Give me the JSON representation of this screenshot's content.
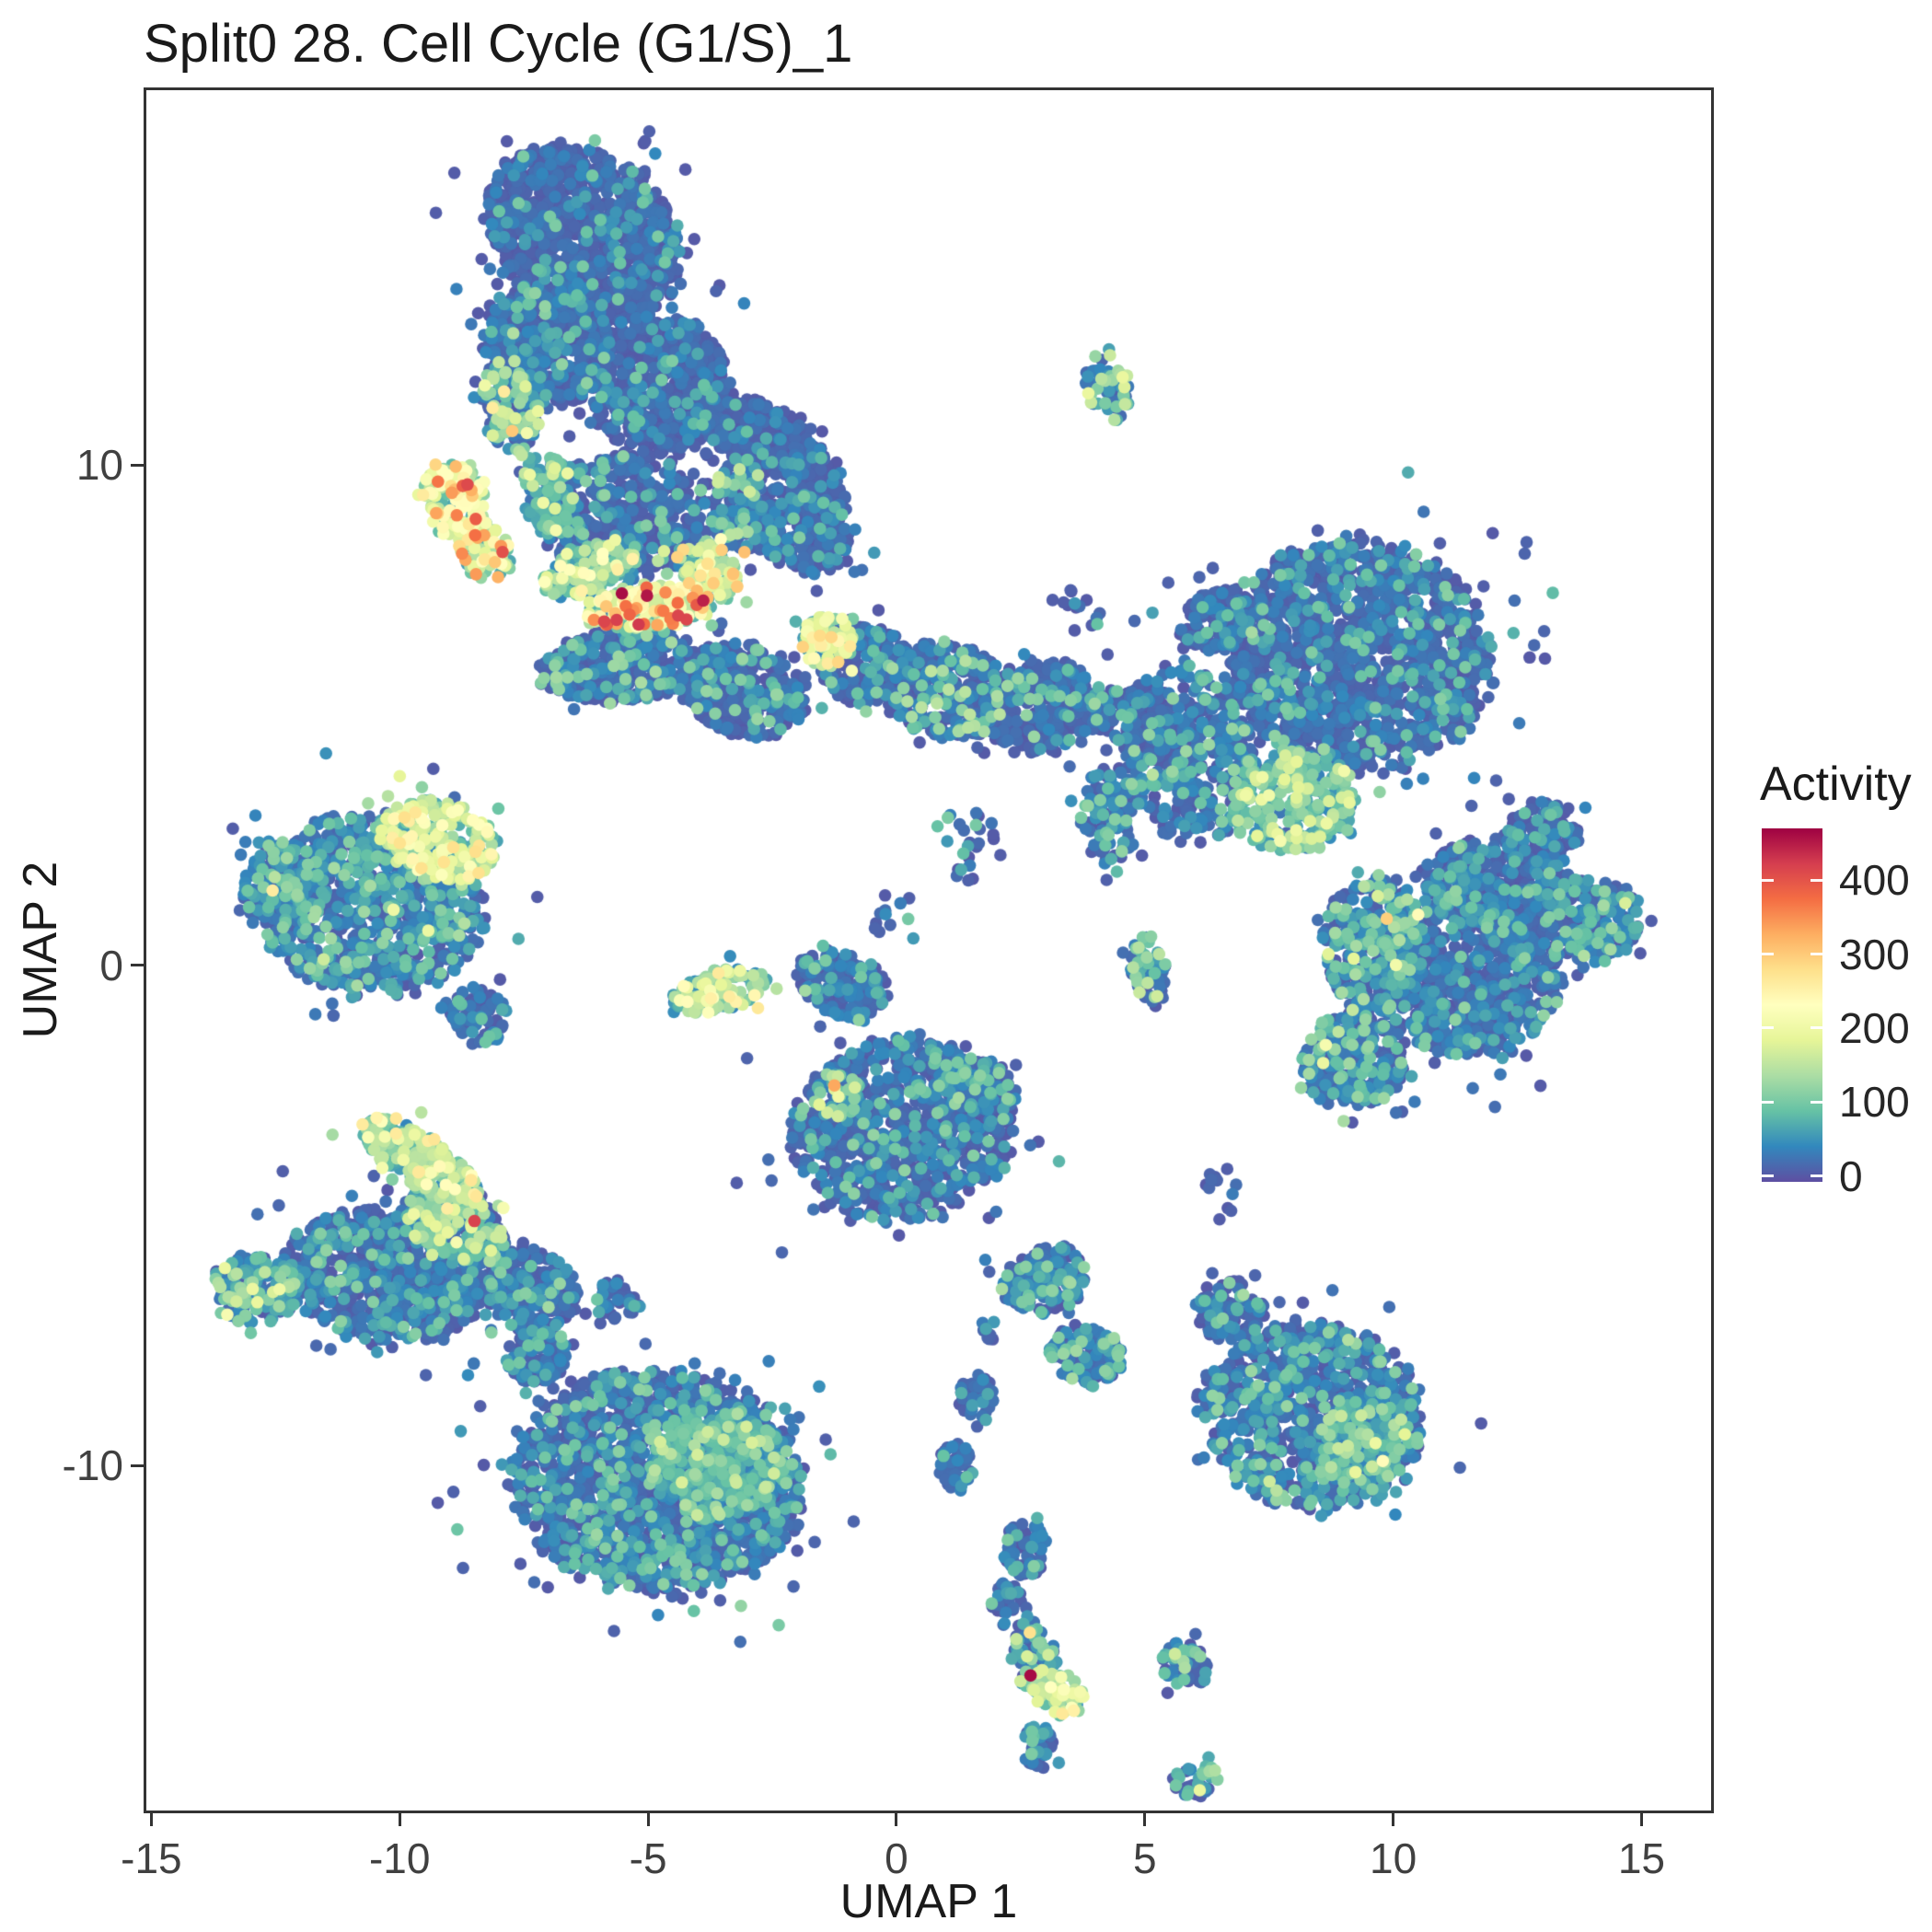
{
  "title": "Split0 28. Cell Cycle (G1/S)_1",
  "chart_data": {
    "type": "scatter",
    "title": "Split0 28. Cell Cycle (G1/S)_1",
    "xlabel": "UMAP 1",
    "ylabel": "UMAP 2",
    "xlim": [
      -15.1,
      16.4
    ],
    "ylim": [
      -16.9,
      17.5
    ],
    "xticks": [
      -15,
      -10,
      -5,
      0,
      5,
      10,
      15
    ],
    "yticks": [
      -10,
      0,
      10
    ],
    "grid": false,
    "point_radius_px": 6.8,
    "seed": 7,
    "legend": {
      "title": "Activity",
      "position": "right",
      "ticks": [
        0,
        100,
        200,
        300,
        400
      ],
      "range": [
        -8,
        470
      ]
    },
    "colormap": [
      {
        "t": 0.0,
        "color": "#5E4FA2"
      },
      {
        "t": 0.1,
        "color": "#3288BD"
      },
      {
        "t": 0.2,
        "color": "#66C2A5"
      },
      {
        "t": 0.3,
        "color": "#ABDDA4"
      },
      {
        "t": 0.4,
        "color": "#E6F598"
      },
      {
        "t": 0.5,
        "color": "#FFFFBF"
      },
      {
        "t": 0.6,
        "color": "#FEE08B"
      },
      {
        "t": 0.7,
        "color": "#FDAE61"
      },
      {
        "t": 0.8,
        "color": "#F46D43"
      },
      {
        "t": 0.9,
        "color": "#D53E4F"
      },
      {
        "t": 1.0,
        "color": "#9E0142"
      }
    ],
    "clusters": [
      {
        "cx": -6.3,
        "cy": 14.6,
        "rx": 2.1,
        "ry": 1.6,
        "rot": -35,
        "n": 1100,
        "base": 12,
        "hf": 0.05,
        "hot": 75
      },
      {
        "cx": -7.0,
        "cy": 12.4,
        "rx": 1.3,
        "ry": 1.2,
        "rot": -20,
        "n": 600,
        "base": 14,
        "hf": 0.07,
        "hot": 85
      },
      {
        "cx": -4.8,
        "cy": 11.6,
        "rx": 1.4,
        "ry": 1.4,
        "rot": 15,
        "n": 600,
        "base": 12,
        "hf": 0.05,
        "hot": 75
      },
      {
        "cx": -7.8,
        "cy": 11.2,
        "rx": 0.55,
        "ry": 1.0,
        "rot": 10,
        "n": 140,
        "base": 55,
        "hf": 0.2,
        "hot": 130
      },
      {
        "cx": -2.8,
        "cy": 10.6,
        "rx": 1.3,
        "ry": 0.65,
        "rot": -25,
        "n": 280,
        "base": 12,
        "hf": 0.05,
        "hot": 70
      },
      {
        "cx": -1.6,
        "cy": 9.5,
        "rx": 0.55,
        "ry": 0.95,
        "rot": 15,
        "n": 130,
        "base": 14,
        "hf": 0.06,
        "hot": 75
      },
      {
        "cx": -5.5,
        "cy": 9.0,
        "rx": 1.7,
        "ry": 1.25,
        "rot": 0,
        "n": 480,
        "base": 16,
        "hf": 0.08,
        "hot": 85
      },
      {
        "cx": -8.9,
        "cy": 9.3,
        "rx": 0.6,
        "ry": 0.8,
        "rot": 20,
        "n": 140,
        "base": 150,
        "hf": 0.22,
        "hot": 300
      },
      {
        "cx": -8.3,
        "cy": 8.3,
        "rx": 0.5,
        "ry": 0.65,
        "rot": 30,
        "n": 90,
        "base": 120,
        "hf": 0.2,
        "hot": 290
      },
      {
        "cx": -7.0,
        "cy": 9.4,
        "rx": 0.5,
        "ry": 0.9,
        "rot": 10,
        "n": 120,
        "base": 60,
        "hf": 0.15,
        "hot": 150
      },
      {
        "cx": -6.2,
        "cy": 7.9,
        "rx": 0.95,
        "ry": 0.45,
        "rot": 20,
        "n": 140,
        "base": 90,
        "hf": 0.2,
        "hot": 185
      },
      {
        "cx": -5.0,
        "cy": 7.15,
        "rx": 1.3,
        "ry": 0.42,
        "rot": 4,
        "n": 190,
        "base": 160,
        "hf": 0.22,
        "hot": 330
      },
      {
        "cx": -3.8,
        "cy": 7.9,
        "rx": 0.7,
        "ry": 0.5,
        "rot": -45,
        "n": 120,
        "base": 110,
        "hf": 0.18,
        "hot": 230
      },
      {
        "cx": -3.2,
        "cy": 9.2,
        "rx": 0.55,
        "ry": 0.95,
        "rot": 0,
        "n": 150,
        "base": 40,
        "hf": 0.1,
        "hot": 120
      },
      {
        "cx": -2.0,
        "cy": 8.7,
        "rx": 1.15,
        "ry": 0.75,
        "rot": -25,
        "n": 280,
        "base": 14,
        "hf": 0.06,
        "hot": 80
      },
      {
        "cx": -5.6,
        "cy": 6.0,
        "rx": 1.6,
        "ry": 0.75,
        "rot": 5,
        "n": 360,
        "base": 20,
        "hf": 0.08,
        "hot": 95
      },
      {
        "cx": -3.1,
        "cy": 5.5,
        "rx": 1.3,
        "ry": 0.9,
        "rot": -15,
        "n": 340,
        "base": 15,
        "hf": 0.08,
        "hot": 90
      },
      {
        "cx": -1.4,
        "cy": 6.5,
        "rx": 0.5,
        "ry": 0.55,
        "rot": 0,
        "n": 90,
        "base": 130,
        "hf": 0.28,
        "hot": 215
      },
      {
        "cx": -0.6,
        "cy": 6.0,
        "rx": 1.0,
        "ry": 0.8,
        "rot": -20,
        "n": 240,
        "base": 15,
        "hf": 0.08,
        "hot": 80
      },
      {
        "cx": 1.0,
        "cy": 5.5,
        "rx": 1.3,
        "ry": 0.95,
        "rot": -10,
        "n": 340,
        "base": 18,
        "hf": 0.11,
        "hot": 110
      },
      {
        "cx": 2.9,
        "cy": 5.2,
        "rx": 1.2,
        "ry": 0.9,
        "rot": 10,
        "n": 300,
        "base": 15,
        "hf": 0.08,
        "hot": 90
      },
      {
        "cx": 3.6,
        "cy": 7.1,
        "rx": 0.55,
        "ry": 0.5,
        "rot": 0,
        "n": 14,
        "base": 15,
        "hf": 0.1,
        "hot": 70
      },
      {
        "cx": 4.25,
        "cy": 11.6,
        "rx": 0.42,
        "ry": 0.72,
        "rot": 8,
        "n": 55,
        "base": 40,
        "hf": 0.25,
        "hot": 140
      },
      {
        "cx": -10.6,
        "cy": 1.2,
        "rx": 2.3,
        "ry": 1.8,
        "rot": -8,
        "n": 950,
        "base": 30,
        "hf": 0.12,
        "hot": 95
      },
      {
        "cx": -9.2,
        "cy": 2.5,
        "rx": 1.2,
        "ry": 0.8,
        "rot": -15,
        "n": 260,
        "base": 120,
        "hf": 0.25,
        "hot": 200
      },
      {
        "cx": -12.3,
        "cy": 1.6,
        "rx": 0.85,
        "ry": 0.9,
        "rot": 0,
        "n": 200,
        "base": 25,
        "hf": 0.1,
        "hot": 85
      },
      {
        "cx": -8.4,
        "cy": -1.0,
        "rx": 0.55,
        "ry": 0.6,
        "rot": 30,
        "n": 90,
        "base": 16,
        "hf": 0.06,
        "hot": 70
      },
      {
        "cx": -3.6,
        "cy": -0.5,
        "rx": 1.0,
        "ry": 0.4,
        "rot": 12,
        "n": 140,
        "base": 95,
        "hf": 0.25,
        "hot": 190
      },
      {
        "cx": -1.1,
        "cy": -0.4,
        "rx": 0.95,
        "ry": 0.65,
        "rot": -25,
        "n": 180,
        "base": 20,
        "hf": 0.1,
        "hot": 95
      },
      {
        "cx": 0.1,
        "cy": -3.3,
        "rx": 2.25,
        "ry": 1.8,
        "rot": 8,
        "n": 950,
        "base": 16,
        "hf": 0.09,
        "hot": 85
      },
      {
        "cx": -1.2,
        "cy": -2.6,
        "rx": 0.5,
        "ry": 0.45,
        "rot": 0,
        "n": 60,
        "base": 55,
        "hf": 0.2,
        "hot": 150
      },
      {
        "cx": 1.6,
        "cy": -2.4,
        "rx": 0.8,
        "ry": 0.55,
        "rot": -15,
        "n": 140,
        "base": 20,
        "hf": 0.1,
        "hot": 90
      },
      {
        "cx": -9.6,
        "cy": -3.9,
        "rx": 1.35,
        "ry": 0.5,
        "rot": -33,
        "n": 230,
        "base": 105,
        "hf": 0.25,
        "hot": 195
      },
      {
        "cx": -8.9,
        "cy": -5.2,
        "rx": 1.1,
        "ry": 0.7,
        "rot": -30,
        "n": 260,
        "base": 55,
        "hf": 0.15,
        "hot": 130
      },
      {
        "cx": -10.3,
        "cy": -6.2,
        "rx": 2.0,
        "ry": 1.3,
        "rot": -10,
        "n": 800,
        "base": 20,
        "hf": 0.09,
        "hot": 85
      },
      {
        "cx": -12.9,
        "cy": -6.5,
        "rx": 0.9,
        "ry": 0.7,
        "rot": 0,
        "n": 170,
        "base": 45,
        "hf": 0.18,
        "hot": 110
      },
      {
        "cx": -7.4,
        "cy": -6.5,
        "rx": 0.95,
        "ry": 0.8,
        "rot": -20,
        "n": 260,
        "base": 18,
        "hf": 0.08,
        "hot": 80
      },
      {
        "cx": -4.8,
        "cy": -10.3,
        "rx": 2.9,
        "ry": 2.2,
        "rot": -4,
        "n": 1900,
        "base": 18,
        "hf": 0.1,
        "hot": 85
      },
      {
        "cx": -3.6,
        "cy": -10.0,
        "rx": 1.35,
        "ry": 1.1,
        "rot": 0,
        "n": 380,
        "base": 60,
        "hf": 0.2,
        "hot": 125
      },
      {
        "cx": -7.2,
        "cy": -7.8,
        "rx": 0.7,
        "ry": 0.5,
        "rot": 20,
        "n": 120,
        "base": 16,
        "hf": 0.07,
        "hot": 75
      },
      {
        "cx": -5.6,
        "cy": -6.7,
        "rx": 0.5,
        "ry": 0.4,
        "rot": 0,
        "n": 45,
        "base": 16,
        "hf": 0.08,
        "hot": 75
      },
      {
        "cx": 9.3,
        "cy": 6.2,
        "rx": 2.7,
        "ry": 2.3,
        "rot": -8,
        "n": 1600,
        "base": 15,
        "hf": 0.07,
        "hot": 80
      },
      {
        "cx": 5.9,
        "cy": 4.2,
        "rx": 1.3,
        "ry": 1.8,
        "rot": 8,
        "n": 420,
        "base": 22,
        "hf": 0.12,
        "hot": 90
      },
      {
        "cx": 8.0,
        "cy": 3.3,
        "rx": 1.25,
        "ry": 1.0,
        "rot": 8,
        "n": 300,
        "base": 75,
        "hf": 0.22,
        "hot": 155
      },
      {
        "cx": 11.5,
        "cy": -0.2,
        "rx": 1.85,
        "ry": 1.6,
        "rot": 0,
        "n": 800,
        "base": 18,
        "hf": 0.08,
        "hot": 85
      },
      {
        "cx": 9.6,
        "cy": 0.4,
        "rx": 1.0,
        "ry": 1.4,
        "rot": 0,
        "n": 300,
        "base": 35,
        "hf": 0.12,
        "hot": 100
      },
      {
        "cx": 12.0,
        "cy": 1.6,
        "rx": 1.4,
        "ry": 0.9,
        "rot": -10,
        "n": 320,
        "base": 20,
        "hf": 0.09,
        "hot": 85
      },
      {
        "cx": 9.2,
        "cy": -1.9,
        "rx": 1.05,
        "ry": 0.95,
        "rot": 0,
        "n": 260,
        "base": 28,
        "hf": 0.12,
        "hot": 95
      },
      {
        "cx": 13.0,
        "cy": 2.6,
        "rx": 0.75,
        "ry": 0.7,
        "rot": 0,
        "n": 150,
        "base": 16,
        "hf": 0.07,
        "hot": 75
      },
      {
        "cx": 14.0,
        "cy": 0.9,
        "rx": 0.95,
        "ry": 0.85,
        "rot": 0,
        "n": 220,
        "base": 30,
        "hf": 0.15,
        "hot": 95
      },
      {
        "cx": 4.3,
        "cy": 3.0,
        "rx": 0.6,
        "ry": 1.0,
        "rot": 0,
        "n": 110,
        "base": 25,
        "hf": 0.12,
        "hot": 90
      },
      {
        "cx": 5.1,
        "cy": -0.1,
        "rx": 0.38,
        "ry": 0.75,
        "rot": 10,
        "n": 65,
        "base": 50,
        "hf": 0.2,
        "hot": 120
      },
      {
        "cx": 6.5,
        "cy": 6.9,
        "rx": 0.8,
        "ry": 0.6,
        "rot": 20,
        "n": 170,
        "base": 15,
        "hf": 0.06,
        "hot": 75
      },
      {
        "cx": 4.7,
        "cy": 4.9,
        "rx": 1.0,
        "ry": 0.6,
        "rot": -15,
        "n": 130,
        "base": 16,
        "hf": 0.07,
        "hot": 75
      },
      {
        "cx": 1.4,
        "cy": 2.4,
        "rx": 0.8,
        "ry": 0.7,
        "rot": 0,
        "n": 26,
        "base": 16,
        "hf": 0.1,
        "hot": 75
      },
      {
        "cx": 0.0,
        "cy": 1.0,
        "rx": 0.6,
        "ry": 0.45,
        "rot": 0,
        "n": 12,
        "base": 16,
        "hf": 0.1,
        "hot": 75
      },
      {
        "cx": 8.4,
        "cy": -9.0,
        "rx": 2.25,
        "ry": 1.85,
        "rot": -12,
        "n": 950,
        "base": 24,
        "hf": 0.11,
        "hot": 90
      },
      {
        "cx": 9.5,
        "cy": -9.5,
        "rx": 1.0,
        "ry": 0.8,
        "rot": 15,
        "n": 170,
        "base": 50,
        "hf": 0.16,
        "hot": 115
      },
      {
        "cx": 6.7,
        "cy": -6.9,
        "rx": 0.7,
        "ry": 0.6,
        "rot": 0,
        "n": 110,
        "base": 20,
        "hf": 0.1,
        "hot": 85
      },
      {
        "cx": 6.6,
        "cy": -4.5,
        "rx": 0.4,
        "ry": 0.7,
        "rot": 0,
        "n": 12,
        "base": 18,
        "hf": 0.1,
        "hot": 75
      },
      {
        "cx": 3.0,
        "cy": -6.3,
        "rx": 0.85,
        "ry": 0.65,
        "rot": 20,
        "n": 190,
        "base": 26,
        "hf": 0.13,
        "hot": 95
      },
      {
        "cx": 3.8,
        "cy": -7.8,
        "rx": 0.75,
        "ry": 0.6,
        "rot": -15,
        "n": 150,
        "base": 30,
        "hf": 0.13,
        "hot": 95
      },
      {
        "cx": 1.6,
        "cy": -8.6,
        "rx": 0.38,
        "ry": 0.45,
        "rot": 0,
        "n": 50,
        "base": 16,
        "hf": 0.1,
        "hot": 75
      },
      {
        "cx": 1.85,
        "cy": -7.3,
        "rx": 0.18,
        "ry": 0.22,
        "rot": 0,
        "n": 9,
        "base": 16,
        "hf": 0.1,
        "hot": 70
      },
      {
        "cx": 1.2,
        "cy": -10.1,
        "rx": 0.38,
        "ry": 0.5,
        "rot": 0,
        "n": 55,
        "base": 16,
        "hf": 0.1,
        "hot": 75
      },
      {
        "cx": 2.6,
        "cy": -11.7,
        "rx": 0.42,
        "ry": 0.55,
        "rot": 0,
        "n": 70,
        "base": 20,
        "hf": 0.1,
        "hot": 80
      },
      {
        "cx": 2.2,
        "cy": -12.7,
        "rx": 0.3,
        "ry": 0.35,
        "rot": 0,
        "n": 35,
        "base": 16,
        "hf": 0.1,
        "hot": 75
      },
      {
        "cx": 2.75,
        "cy": -13.8,
        "rx": 0.45,
        "ry": 0.75,
        "rot": 10,
        "n": 90,
        "base": 45,
        "hf": 0.2,
        "hot": 130
      },
      {
        "cx": 3.25,
        "cy": -14.6,
        "rx": 0.52,
        "ry": 0.45,
        "rot": -10,
        "n": 60,
        "base": 110,
        "hf": 0.3,
        "hot": 195
      },
      {
        "cx": 2.85,
        "cy": -15.7,
        "rx": 0.35,
        "ry": 0.5,
        "rot": 0,
        "n": 45,
        "base": 25,
        "hf": 0.12,
        "hot": 85
      },
      {
        "cx": 5.8,
        "cy": -14.0,
        "rx": 0.5,
        "ry": 0.45,
        "rot": -20,
        "n": 70,
        "base": 30,
        "hf": 0.18,
        "hot": 100
      },
      {
        "cx": 6.0,
        "cy": -16.3,
        "rx": 0.5,
        "ry": 0.35,
        "rot": 0,
        "n": 40,
        "base": 35,
        "hf": 0.18,
        "hot": 105
      }
    ],
    "highlight_points": [
      {
        "x": 2.7,
        "y": -14.2,
        "a": 462
      },
      {
        "x": -1.25,
        "y": -2.4,
        "a": 330
      },
      {
        "x": -10.35,
        "y": -4.05,
        "a": 210
      },
      {
        "x": -9.5,
        "y": 2.85,
        "a": 225
      },
      {
        "x": -13.65,
        "y": -6.35,
        "a": 140
      },
      {
        "x": 4.3,
        "y": 12.2,
        "a": 160
      },
      {
        "x": 3.35,
        "y": -14.6,
        "a": 205
      },
      {
        "x": -3.75,
        "y": -0.5,
        "a": 215
      },
      {
        "x": -8.85,
        "y": 9.0,
        "a": 360
      },
      {
        "x": -8.95,
        "y": 9.45,
        "a": 340
      },
      {
        "x": -8.3,
        "y": 8.6,
        "a": 335
      },
      {
        "x": -5.3,
        "y": 7.1,
        "a": 350
      },
      {
        "x": -4.75,
        "y": 7.1,
        "a": 330
      },
      {
        "x": -4.1,
        "y": 7.35,
        "a": 345
      },
      {
        "x": 7.5,
        "y": 3.4,
        "a": 205
      }
    ]
  }
}
